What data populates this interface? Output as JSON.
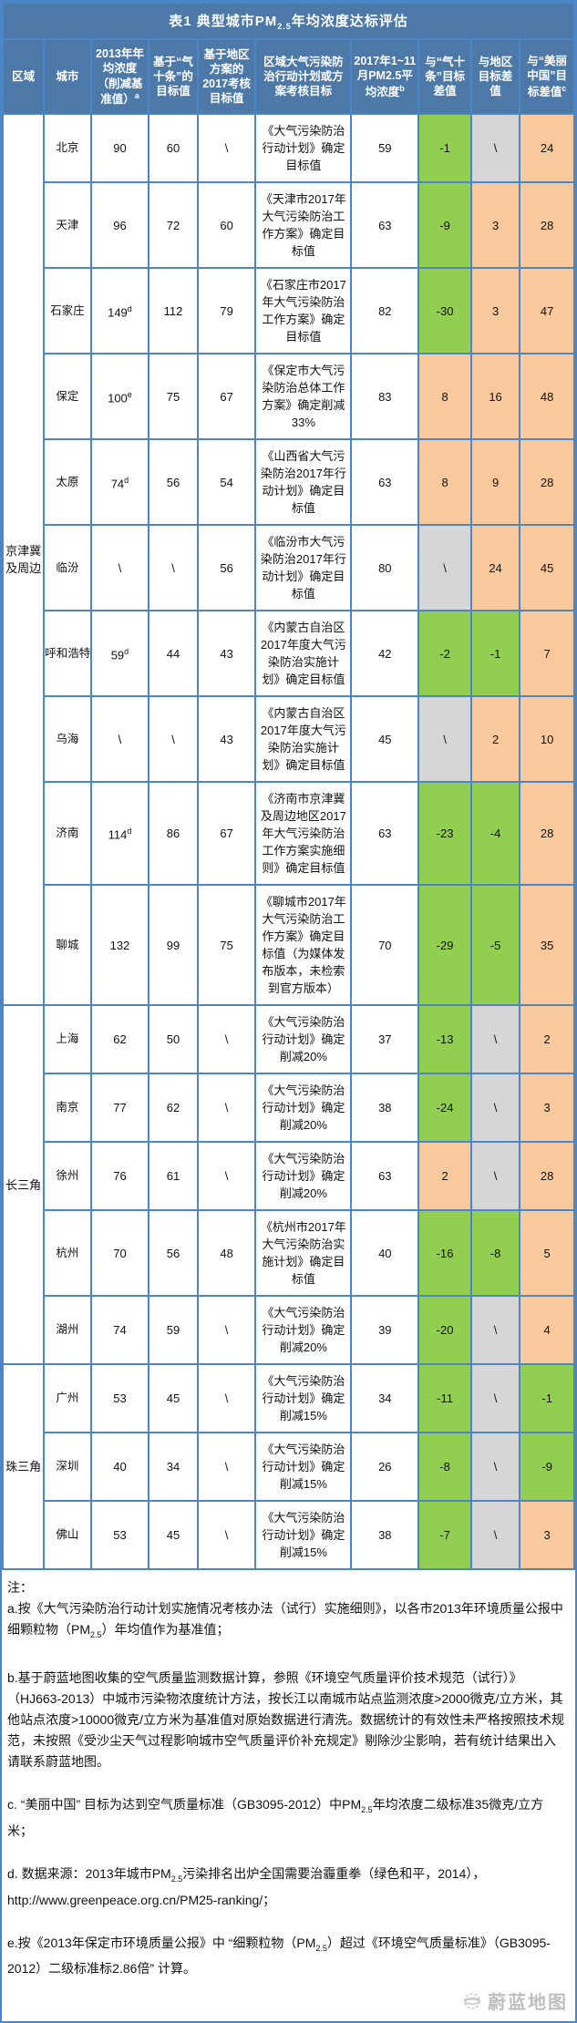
{
  "title": "表1 典型城市PM2.5年均浓度达标评估",
  "columns": [
    {
      "label": "区域"
    },
    {
      "label": "城市"
    },
    {
      "label": "2013年年均浓度（削减基准值）",
      "sup": "a"
    },
    {
      "label": "基于“气十条”的目标值"
    },
    {
      "label": "基于地区方案的2017考核目标值"
    },
    {
      "label": "区域大气污染防治行动计划或方案考核目标"
    },
    {
      "label": "2017年1~11月PM2.5平均浓度",
      "sup": "b"
    },
    {
      "label": "与“气十条”目标差值"
    },
    {
      "label": "与地区目标差值"
    },
    {
      "label": "与“美丽中国”目标差值",
      "sup": "c"
    }
  ],
  "colors": {
    "header_bg": "#4d79a8",
    "border": "#4a86c8",
    "green": "#92ce50",
    "orange": "#f9c99e",
    "gray": "#d6d6d6"
  },
  "regions": [
    {
      "name": "京津冀及周边",
      "cities": [
        {
          "city": "北京",
          "v2013": "90",
          "v2013_sup": "",
          "t10": "60",
          "treg": "\\",
          "plan": "《大气污染防治行动计划》确定目标值",
          "avg": "59",
          "d10": "-1",
          "d10c": "green",
          "dreg": "\\",
          "dregc": "gray",
          "dmc": "24",
          "dmcc": "orange"
        },
        {
          "city": "天津",
          "v2013": "96",
          "v2013_sup": "",
          "t10": "72",
          "treg": "60",
          "plan": "《天津市2017年大气污染防治工作方案》确定目标值",
          "avg": "63",
          "d10": "-9",
          "d10c": "green",
          "dreg": "3",
          "dregc": "orange",
          "dmc": "28",
          "dmcc": "orange"
        },
        {
          "city": "石家庄",
          "v2013": "149",
          "v2013_sup": "d",
          "t10": "112",
          "treg": "79",
          "plan": "《石家庄市2017年大气污染防治工作方案》确定目标值",
          "avg": "82",
          "d10": "-30",
          "d10c": "green",
          "dreg": "3",
          "dregc": "orange",
          "dmc": "47",
          "dmcc": "orange"
        },
        {
          "city": "保定",
          "v2013": "100",
          "v2013_sup": "e",
          "t10": "75",
          "treg": "67",
          "plan": "《保定市大气污染防治总体工作方案》确定削减33%",
          "avg": "83",
          "d10": "8",
          "d10c": "orange",
          "dreg": "16",
          "dregc": "orange",
          "dmc": "48",
          "dmcc": "orange"
        },
        {
          "city": "太原",
          "v2013": "74",
          "v2013_sup": "d",
          "t10": "56",
          "treg": "54",
          "plan": "《山西省大气污染防治2017年行动计划》确定目标值",
          "avg": "63",
          "d10": "8",
          "d10c": "orange",
          "dreg": "9",
          "dregc": "orange",
          "dmc": "28",
          "dmcc": "orange"
        },
        {
          "city": "临汾",
          "v2013": "\\",
          "v2013_sup": "",
          "t10": "\\",
          "treg": "56",
          "plan": "《临汾市大气污染防治2017年行动计划》确定目标值",
          "avg": "80",
          "d10": "\\",
          "d10c": "gray",
          "dreg": "24",
          "dregc": "orange",
          "dmc": "45",
          "dmcc": "orange"
        },
        {
          "city": "呼和浩特",
          "v2013": "59",
          "v2013_sup": "d",
          "t10": "44",
          "treg": "43",
          "plan": "《内蒙古自治区2017年度大气污染防治实施计划》确定目标值",
          "avg": "42",
          "d10": "-2",
          "d10c": "green",
          "dreg": "-1",
          "dregc": "green",
          "dmc": "7",
          "dmcc": "orange"
        },
        {
          "city": "乌海",
          "v2013": "\\",
          "v2013_sup": "",
          "t10": "\\",
          "treg": "43",
          "plan": "《内蒙古自治区2017年度大气污染防治实施计划》确定目标值",
          "avg": "45",
          "d10": "\\",
          "d10c": "gray",
          "dreg": "2",
          "dregc": "orange",
          "dmc": "10",
          "dmcc": "orange"
        },
        {
          "city": "济南",
          "v2013": "114",
          "v2013_sup": "d",
          "t10": "86",
          "treg": "67",
          "plan": "《济南市京津冀及周边地区2017年大气污染防治工作方案实施细则》确定目标值",
          "avg": "63",
          "d10": "-23",
          "d10c": "green",
          "dreg": "-4",
          "dregc": "green",
          "dmc": "28",
          "dmcc": "orange"
        },
        {
          "city": "聊城",
          "v2013": "132",
          "v2013_sup": "",
          "t10": "99",
          "treg": "75",
          "plan": "《聊城市2017年大气污染防治工作方案》确定目标值（为媒体发布版本，未检索到官方版本）",
          "avg": "70",
          "d10": "-29",
          "d10c": "green",
          "dreg": "-5",
          "dregc": "green",
          "dmc": "35",
          "dmcc": "orange"
        }
      ]
    },
    {
      "name": "长三角",
      "cities": [
        {
          "city": "上海",
          "v2013": "62",
          "v2013_sup": "",
          "t10": "50",
          "treg": "\\",
          "plan": "《大气污染防治行动计划》确定削减20%",
          "avg": "37",
          "d10": "-13",
          "d10c": "green",
          "dreg": "\\",
          "dregc": "gray",
          "dmc": "2",
          "dmcc": "orange"
        },
        {
          "city": "南京",
          "v2013": "77",
          "v2013_sup": "",
          "t10": "62",
          "treg": "\\",
          "plan": "《大气污染防治行动计划》确定削减20%",
          "avg": "38",
          "d10": "-24",
          "d10c": "green",
          "dreg": "\\",
          "dregc": "gray",
          "dmc": "3",
          "dmcc": "orange"
        },
        {
          "city": "徐州",
          "v2013": "76",
          "v2013_sup": "",
          "t10": "61",
          "treg": "\\",
          "plan": "《大气污染防治行动计划》确定削减20%",
          "avg": "63",
          "d10": "2",
          "d10c": "orange",
          "dreg": "\\",
          "dregc": "gray",
          "dmc": "28",
          "dmcc": "orange"
        },
        {
          "city": "杭州",
          "v2013": "70",
          "v2013_sup": "",
          "t10": "56",
          "treg": "48",
          "plan": "《杭州市2017年大气污染防治实施计划》确定目标值",
          "avg": "40",
          "d10": "-16",
          "d10c": "green",
          "dreg": "-8",
          "dregc": "green",
          "dmc": "5",
          "dmcc": "orange"
        },
        {
          "city": "湖州",
          "v2013": "74",
          "v2013_sup": "",
          "t10": "59",
          "treg": "\\",
          "plan": "《大气污染防治行动计划》确定削减20%",
          "avg": "39",
          "d10": "-20",
          "d10c": "green",
          "dreg": "\\",
          "dregc": "gray",
          "dmc": "4",
          "dmcc": "orange"
        }
      ]
    },
    {
      "name": "珠三角",
      "cities": [
        {
          "city": "广州",
          "v2013": "53",
          "v2013_sup": "",
          "t10": "45",
          "treg": "\\",
          "plan": "《大气污染防治行动计划》确定削减15%",
          "avg": "34",
          "d10": "-11",
          "d10c": "green",
          "dreg": "\\",
          "dregc": "gray",
          "dmc": "-1",
          "dmcc": "green"
        },
        {
          "city": "深圳",
          "v2013": "40",
          "v2013_sup": "",
          "t10": "34",
          "treg": "\\",
          "plan": "《大气污染防治行动计划》确定削减15%",
          "avg": "26",
          "d10": "-8",
          "d10c": "green",
          "dreg": "\\",
          "dregc": "gray",
          "dmc": "-9",
          "dmcc": "green"
        },
        {
          "city": "佛山",
          "v2013": "53",
          "v2013_sup": "",
          "t10": "45",
          "treg": "\\",
          "plan": "《大气污染防治行动计划》确定削减15%",
          "avg": "38",
          "d10": "-7",
          "d10c": "green",
          "dreg": "\\",
          "dregc": "gray",
          "dmc": "3",
          "dmcc": "orange"
        }
      ]
    }
  ],
  "notes": {
    "label": "注：",
    "items": [
      "a.按《大气污染防治行动计划实施情况考核办法（试行）实施细则》，以各市2013年环境质量公报中细颗粒物（PM2.5）年均值作为基准值；",
      "b.基于蔚蓝地图收集的空气质量监测数据计算，参照《环境空气质量评价技术规范（试行）》（HJ663-2013）中城市污染物浓度统计方法，按长江以南城市站点监测浓度>2000微克/立方米，其他站点浓度>10000微克/立方米为基准值对原始数据进行清洗。数据统计的有效性未严格按照技术规范，未按照《受沙尘天气过程影响城市空气质量评价补充规定》剔除沙尘影响，若有统计结果出入请联系蔚蓝地图。",
      "c. “美丽中国” 目标为达到空气质量标准（GB3095-2012）中PM2.5年均浓度二级标准35微克/立方米；",
      "d. 数据来源：2013年城市PM2.5污染排名出炉全国需要治霾重拳（绿色和平，2014），http://www.greenpeace.org.cn/PM25-ranking/；",
      "e.按《2013年保定市环境质量公报》中 “细颗粒物（PM2.5）超过《环境空气质量标准》（GB3095-2012）二级标准标2.86倍” 计算。"
    ]
  },
  "watermark": "蔚蓝地图"
}
